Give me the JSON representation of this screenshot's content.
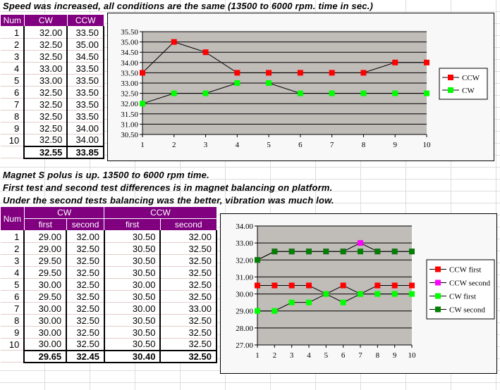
{
  "texts": {
    "t1": "Speed was increased, all conditions are the same (13500 to 6000 rpm. time in sec.)",
    "t2": "Magnet S polus is up. 13500 to 6000 rpm time.",
    "t3": "First test and second test differences is in magnet balancing on platform.",
    "t4": "Under the second tests balancing was the better, vibration was much low."
  },
  "table1": {
    "headers": [
      "Num",
      "CW",
      "CCW"
    ],
    "rows": [
      [
        "1",
        "32.00",
        "33.50"
      ],
      [
        "2",
        "32.50",
        "35.00"
      ],
      [
        "3",
        "32.50",
        "34.50"
      ],
      [
        "4",
        "33.00",
        "33.50"
      ],
      [
        "5",
        "33.00",
        "33.50"
      ],
      [
        "6",
        "32.50",
        "33.50"
      ],
      [
        "7",
        "32.50",
        "33.50"
      ],
      [
        "8",
        "32.50",
        "33.50"
      ],
      [
        "9",
        "32.50",
        "34.00"
      ],
      [
        "10",
        "32.50",
        "34.00"
      ]
    ],
    "totals": [
      "32.55",
      "33.85"
    ]
  },
  "table2": {
    "headers": [
      "Num",
      "CW",
      "CCW"
    ],
    "subheaders": [
      "first",
      "second",
      "first",
      "second"
    ],
    "rows": [
      [
        "1",
        "29.00",
        "32.00",
        "30.50",
        "32.00"
      ],
      [
        "2",
        "29.00",
        "32.50",
        "30.50",
        "32.50"
      ],
      [
        "3",
        "29.50",
        "32.50",
        "30.50",
        "32.50"
      ],
      [
        "4",
        "29.50",
        "32.50",
        "30.50",
        "32.50"
      ],
      [
        "5",
        "30.00",
        "32.50",
        "30.00",
        "32.50"
      ],
      [
        "6",
        "29.50",
        "32.50",
        "30.50",
        "32.50"
      ],
      [
        "7",
        "30.00",
        "32.50",
        "30.00",
        "33.00"
      ],
      [
        "8",
        "30.00",
        "32.50",
        "30.50",
        "32.50"
      ],
      [
        "9",
        "30.00",
        "32.50",
        "30.50",
        "32.50"
      ],
      [
        "10",
        "30.00",
        "32.50",
        "30.50",
        "32.50"
      ]
    ],
    "totals": [
      "29.65",
      "32.45",
      "30.40",
      "32.50"
    ]
  },
  "chart_data": [
    {
      "type": "line",
      "x": [
        1,
        2,
        3,
        4,
        5,
        6,
        7,
        8,
        9,
        10
      ],
      "ylim": [
        30.5,
        35.5
      ],
      "ystep": 0.5,
      "legend": "right",
      "series": [
        {
          "name": "CCW",
          "color": "#ff0000",
          "values": [
            33.5,
            35,
            34.5,
            33.5,
            33.5,
            33.5,
            33.5,
            33.5,
            34,
            34
          ]
        },
        {
          "name": "CW",
          "color": "#00ff00",
          "values": [
            32,
            32.5,
            32.5,
            33,
            33,
            32.5,
            32.5,
            32.5,
            32.5,
            32.5
          ]
        }
      ]
    },
    {
      "type": "line",
      "x": [
        1,
        2,
        3,
        4,
        5,
        6,
        7,
        8,
        9,
        10
      ],
      "ylim": [
        27,
        34
      ],
      "ystep": 1,
      "legend": "right",
      "series": [
        {
          "name": "CCW first",
          "color": "#ff0000",
          "values": [
            30.5,
            30.5,
            30.5,
            30.5,
            30,
            30.5,
            30,
            30.5,
            30.5,
            30.5
          ]
        },
        {
          "name": "CCW second",
          "color": "#ff00ff",
          "values": [
            32,
            32.5,
            32.5,
            32.5,
            32.5,
            32.5,
            33,
            32.5,
            32.5,
            32.5
          ]
        },
        {
          "name": "CW first",
          "color": "#00ff00",
          "values": [
            29,
            29,
            29.5,
            29.5,
            30,
            29.5,
            30,
            30,
            30,
            30
          ]
        },
        {
          "name": "CW second",
          "color": "#008000",
          "values": [
            32,
            32.5,
            32.5,
            32.5,
            32.5,
            32.5,
            32.5,
            32.5,
            32.5,
            32.5
          ]
        }
      ]
    }
  ]
}
